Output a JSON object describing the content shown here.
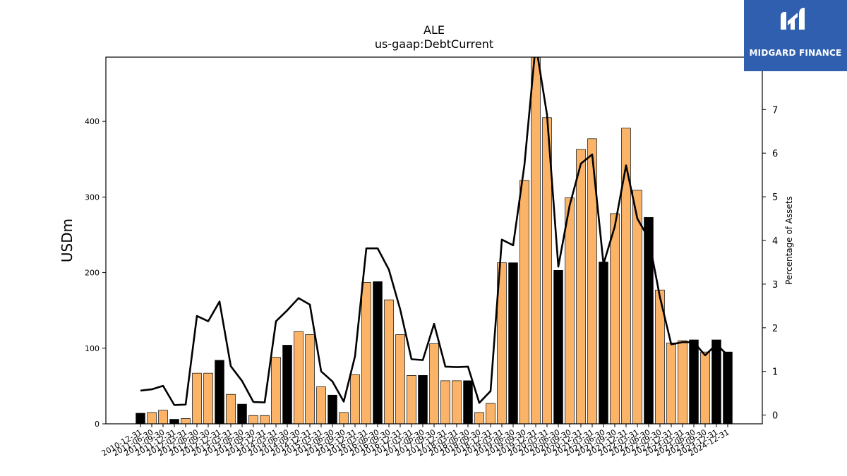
{
  "colors": {
    "bar_orange": "#fbb467",
    "bar_black": "#000000",
    "line": "#000000",
    "logo_bg": "#2f5fae"
  },
  "logo": {
    "text": "MIDGARD FINANCE",
    "icon": "midgard-logo-icon"
  },
  "chart_data": {
    "type": "bar",
    "title": "ALE",
    "subtitle": "us-gaap:DebtCurrent",
    "ylabel": "USDm",
    "y2label": "Percentage of Assets",
    "ylim": [
      0,
      485
    ],
    "y2lim": [
      -0.2,
      8.2
    ],
    "yticks": [
      0,
      100,
      200,
      300,
      400
    ],
    "y2ticks": [
      0,
      1,
      2,
      3,
      4,
      5,
      6,
      7
    ],
    "categories": [
      "2010-12-31",
      "2011-06-30",
      "2011-09-30",
      "2011-12-31",
      "2012-03-31",
      "2012-06-30",
      "2012-09-30",
      "2012-12-31",
      "2013-03-31",
      "2013-06-30",
      "2013-09-30",
      "2013-12-31",
      "2014-03-31",
      "2014-06-30",
      "2014-09-30",
      "2014-12-31",
      "2015-03-31",
      "2015-06-30",
      "2015-09-30",
      "2015-12-31",
      "2016-03-31",
      "2016-06-30",
      "2016-09-30",
      "2016-12-31",
      "2017-03-31",
      "2017-06-30",
      "2017-09-30",
      "2017-12-31",
      "2018-03-31",
      "2018-06-30",
      "2018-09-30",
      "2018-12-31",
      "2019-03-31",
      "2019-06-30",
      "2019-09-30",
      "2019-12-31",
      "2020-03-31",
      "2020-06-30",
      "2020-09-30",
      "2020-12-31",
      "2021-03-31",
      "2021-06-30",
      "2021-09-30",
      "2021-12-31",
      "2022-03-31",
      "2022-06-30",
      "2022-09-30",
      "2022-12-31",
      "2023-03-31",
      "2023-06-30",
      "2023-09-30",
      "2023-12-31",
      "2024-12-31"
    ],
    "series": [
      {
        "type": "bar",
        "values": [
          14,
          15,
          18,
          6,
          7,
          67,
          67,
          84,
          39,
          26,
          11,
          11,
          88,
          104,
          122,
          118,
          49,
          38,
          15,
          65,
          187,
          188,
          164,
          118,
          64,
          64,
          106,
          57,
          57,
          57,
          15,
          27,
          213,
          213,
          322,
          491,
          405,
          203,
          299,
          363,
          377,
          214,
          278,
          391,
          309,
          273,
          177,
          107,
          110,
          111,
          95,
          111,
          95
        ],
        "highlight": [
          1,
          0,
          0,
          1,
          0,
          0,
          0,
          1,
          0,
          1,
          0,
          0,
          0,
          1,
          0,
          0,
          0,
          1,
          0,
          0,
          0,
          1,
          0,
          0,
          0,
          1,
          0,
          0,
          0,
          1,
          0,
          0,
          0,
          1,
          0,
          0,
          0,
          1,
          0,
          0,
          0,
          1,
          0,
          0,
          0,
          1,
          0,
          0,
          0,
          1,
          0,
          1,
          1
        ]
      },
      {
        "type": "line",
        "values": [
          0.56,
          0.59,
          0.67,
          0.23,
          0.24,
          2.27,
          2.15,
          2.6,
          1.12,
          0.78,
          0.3,
          0.29,
          2.15,
          2.4,
          2.68,
          2.53,
          1.0,
          0.77,
          0.31,
          1.35,
          3.82,
          3.82,
          3.33,
          2.42,
          1.28,
          1.26,
          2.09,
          1.11,
          1.1,
          1.11,
          0.28,
          0.55,
          4.02,
          3.89,
          5.73,
          8.5,
          6.88,
          3.4,
          4.8,
          5.76,
          5.97,
          3.46,
          4.32,
          5.72,
          4.5,
          4.05,
          2.7,
          1.62,
          1.67,
          1.67,
          1.37,
          1.62,
          1.37
        ]
      }
    ],
    "grid": false,
    "legend": "none"
  }
}
